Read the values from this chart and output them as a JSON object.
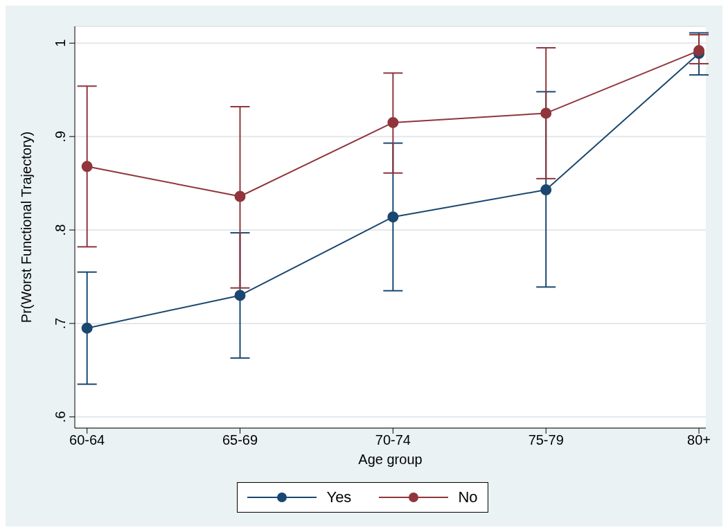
{
  "chart_data": {
    "type": "line",
    "xlabel": "Age group",
    "ylabel": "Pr(Worst Functional Trajectory)",
    "categories": [
      "60-64",
      "65-69",
      "70-74",
      "75-79",
      "80+"
    ],
    "series": [
      {
        "name": "Yes",
        "color": "#1a476f",
        "values": [
          0.695,
          0.73,
          0.814,
          0.843,
          0.989
        ],
        "errors": [
          [
            0.635,
            0.755
          ],
          [
            0.663,
            0.797
          ],
          [
            0.735,
            0.893
          ],
          [
            0.739,
            0.948
          ],
          [
            0.966,
            1.011
          ]
        ]
      },
      {
        "name": "No",
        "color": "#90353b",
        "values": [
          0.868,
          0.836,
          0.915,
          0.925,
          0.992
        ],
        "errors": [
          [
            0.782,
            0.954
          ],
          [
            0.738,
            0.932
          ],
          [
            0.861,
            0.968
          ],
          [
            0.855,
            0.995
          ],
          [
            0.978,
            1.009
          ]
        ]
      }
    ],
    "ylim": [
      0.588,
      1.018
    ],
    "yticks": [
      {
        "value": 0.6,
        "label": ".6"
      },
      {
        "value": 0.7,
        "label": ".7"
      },
      {
        "value": 0.8,
        "label": ".8"
      },
      {
        "value": 0.9,
        "label": ".9"
      },
      {
        "value": 1,
        "label": "1"
      }
    ],
    "grid": "y",
    "legend": "bottom",
    "marker": "circle",
    "line_style": "solid"
  }
}
